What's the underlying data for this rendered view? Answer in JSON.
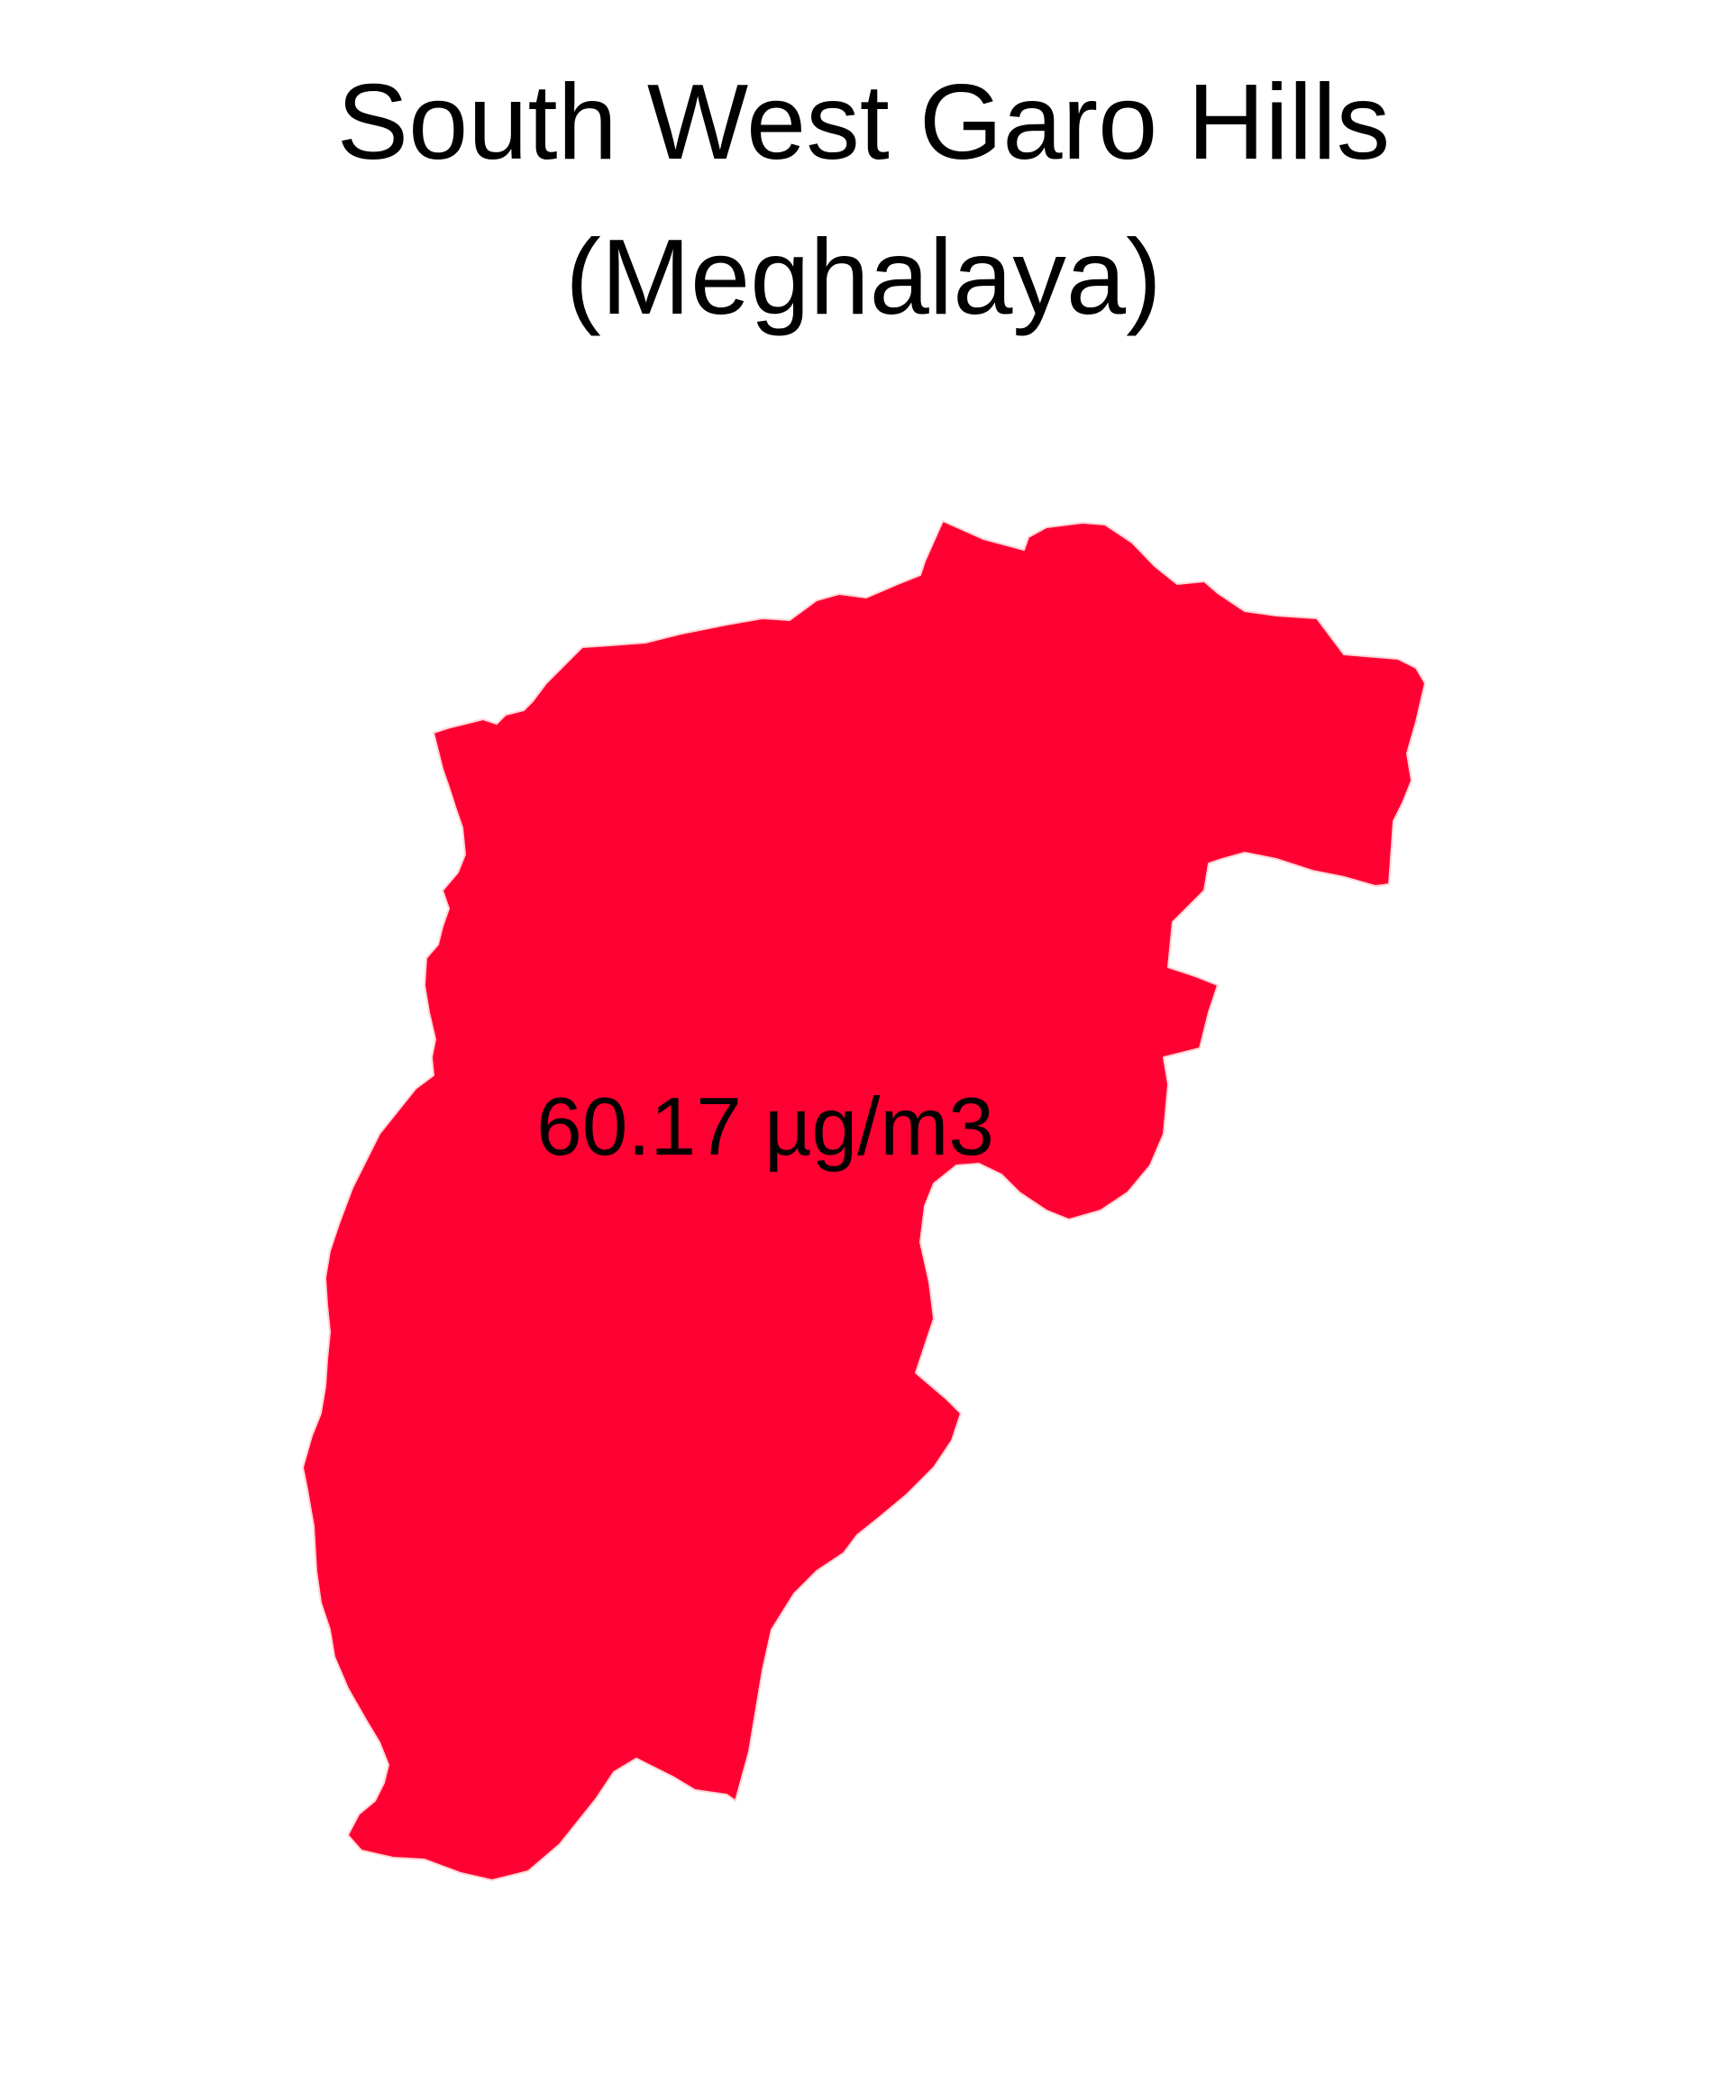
{
  "map": {
    "title_line1": "South West Garo Hills",
    "title_line2": "(Meghalaya)",
    "region": {
      "name": "South West Garo Hills",
      "fill_color": "#FF0033",
      "value_label": "60.17 µg/m3"
    }
  }
}
